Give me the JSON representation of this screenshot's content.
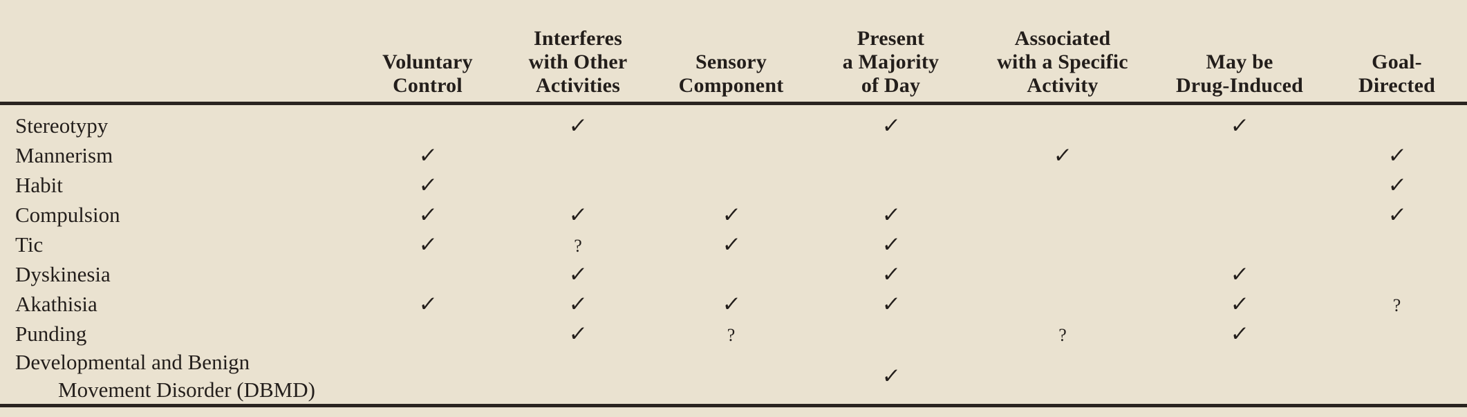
{
  "page": {
    "background": "#eae2d0",
    "ink": "#231e1b",
    "rule_color": "#2a2420"
  },
  "table": {
    "corner_label": "",
    "symbols": {
      "check": "✓",
      "question": "?"
    },
    "columns": [
      {
        "label": "Voluntary\nControl"
      },
      {
        "label": "Interferes\nwith Other\nActivities"
      },
      {
        "label": "Sensory\nComponent"
      },
      {
        "label": "Present\na Majority\nof Day"
      },
      {
        "label": "Associated\nwith a Specific\nActivity"
      },
      {
        "label": "May be\nDrug-Induced"
      },
      {
        "label": "Goal-\nDirected"
      }
    ],
    "rows": [
      {
        "label": "Stereotypy",
        "label2": "",
        "cells": [
          "",
          "check",
          "",
          "check",
          "",
          "check",
          ""
        ]
      },
      {
        "label": "Mannerism",
        "label2": "",
        "cells": [
          "check",
          "",
          "",
          "",
          "check",
          "",
          "check"
        ]
      },
      {
        "label": "Habit",
        "label2": "",
        "cells": [
          "check",
          "",
          "",
          "",
          "",
          "",
          "check"
        ]
      },
      {
        "label": "Compulsion",
        "label2": "",
        "cells": [
          "check",
          "check",
          "check",
          "check",
          "",
          "",
          "check"
        ]
      },
      {
        "label": "Tic",
        "label2": "",
        "cells": [
          "check",
          "question",
          "check",
          "check",
          "",
          "",
          ""
        ]
      },
      {
        "label": "Dyskinesia",
        "label2": "",
        "cells": [
          "",
          "check",
          "",
          "check",
          "",
          "check",
          ""
        ]
      },
      {
        "label": "Akathisia",
        "label2": "",
        "cells": [
          "check",
          "check",
          "check",
          "check",
          "",
          "check",
          "question"
        ]
      },
      {
        "label": "Punding",
        "label2": "",
        "cells": [
          "",
          "check",
          "question",
          "",
          "question",
          "check",
          ""
        ]
      },
      {
        "label": "Developmental and Benign",
        "label2": "Movement Disorder (DBMD)",
        "cells": [
          "",
          "",
          "",
          "check",
          "",
          "",
          ""
        ]
      }
    ]
  }
}
